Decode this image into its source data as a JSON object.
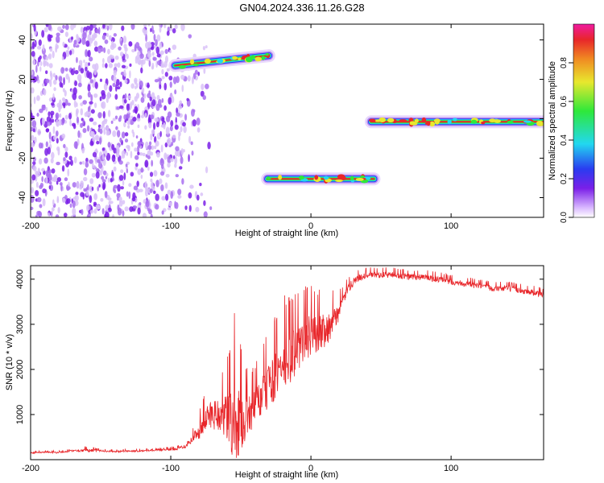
{
  "title": "GN04.2024.336.11.26.G28",
  "colors": {
    "axis": "#000000",
    "snr_line": "#e8262a",
    "noise_purple": "#7a1fe8",
    "signal_core": "#e8262a",
    "signal_green": "#2ee83a",
    "signal_blue": "#2a3cf0"
  },
  "chart_data": [
    {
      "type": "heatmap",
      "title": "GN04.2024.336.11.26.G28",
      "xlabel": "Height of straight line (km)",
      "ylabel": "Frequency (Hz)",
      "xlim": [
        -200,
        166
      ],
      "ylim": [
        -50,
        48
      ],
      "xticks": [
        -200,
        -100,
        0,
        100
      ],
      "yticks": [
        40,
        20,
        0,
        -20,
        -40
      ],
      "colorbar": {
        "label": "Normalized spectral amplitude",
        "range": [
          0,
          1
        ],
        "ticks": [
          0,
          0.2,
          0.4,
          0.6,
          0.8
        ],
        "tick_labels": [
          "0.0",
          "0.2",
          "0.4",
          "0.6",
          "0.8"
        ],
        "colormap": "rainbow (white-purple-blue-cyan-green-yellow-red-magenta)"
      },
      "features": [
        {
          "name": "noise",
          "x_range": [
            -200,
            -95
          ],
          "freq_range": [
            -50,
            48
          ],
          "amplitude": 0.15
        },
        {
          "name": "signal",
          "x_range": [
            -97,
            -30
          ],
          "freq_start": 27,
          "freq_end": 32,
          "amplitude": 0.7
        },
        {
          "name": "signal",
          "x_range": [
            -31,
            45
          ],
          "freq": -30.5,
          "amplitude": 0.8
        },
        {
          "name": "signal",
          "x_range": [
            43,
            166
          ],
          "freq": -1.5,
          "amplitude": 0.9
        }
      ]
    },
    {
      "type": "line",
      "xlabel": "Height of straight line (km)",
      "ylabel": "SNR (10 * v/v)",
      "xlim": [
        -200,
        166
      ],
      "ylim": [
        0,
        4300
      ],
      "xticks": [
        -200,
        -100,
        0,
        100
      ],
      "yticks": [
        1000,
        2000,
        3000,
        4000
      ],
      "series": [
        {
          "x": [
            -200,
            -190,
            -180,
            -170,
            -160,
            -150,
            -140,
            -130,
            -120,
            -110,
            -100,
            -95,
            -90,
            -85,
            -80,
            -75,
            -70,
            -65,
            -60,
            -55,
            -50,
            -45,
            -40,
            -35,
            -30,
            -25,
            -20,
            -15,
            -10,
            -5,
            0,
            5,
            10,
            15,
            20,
            25,
            30,
            35,
            40,
            50,
            60,
            70,
            80,
            90,
            100,
            110,
            120,
            130,
            140,
            150,
            160,
            166
          ],
          "values": [
            150,
            170,
            160,
            200,
            210,
            200,
            180,
            190,
            200,
            210,
            230,
            250,
            300,
            450,
            650,
            900,
            1050,
            1000,
            950,
            900,
            900,
            1000,
            1200,
            1400,
            1700,
            1900,
            2100,
            2300,
            2500,
            2700,
            2800,
            2850,
            2900,
            3000,
            3300,
            3700,
            3950,
            4050,
            4100,
            4100,
            4100,
            4050,
            4050,
            4000,
            3950,
            3900,
            3850,
            3800,
            3800,
            3750,
            3700,
            3650
          ],
          "spike_amp": [
            30,
            30,
            40,
            40,
            80,
            40,
            40,
            40,
            40,
            40,
            50,
            60,
            100,
            200,
            400,
            600,
            800,
            700,
            1200,
            2200,
            1500,
            900,
            900,
            1000,
            1100,
            1200,
            1500,
            1300,
            1200,
            1100,
            1000,
            900,
            800,
            700,
            400,
            250,
            200,
            150,
            150,
            150,
            150,
            150,
            150,
            150,
            140,
            140,
            140,
            140,
            140,
            140,
            140,
            140
          ]
        }
      ]
    }
  ]
}
